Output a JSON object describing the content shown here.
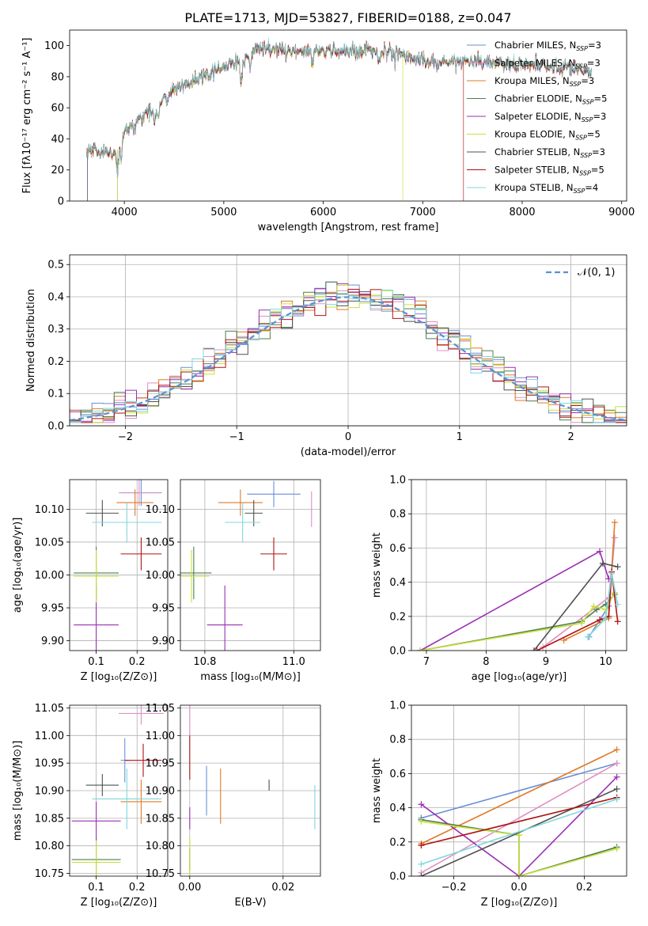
{
  "figure_title": "PLATE=1713, MJD=53827, FIBERID=0188, z=0.047",
  "colors": {
    "Chabrier MILES": "#6a8fd6",
    "Salpeter MILES": "#e08fc3",
    "Kroupa MILES": "#e07a26",
    "Chabrier ELODIE": "#4e7f4e",
    "Salpeter ELODIE": "#9a2fb3",
    "Kroupa ELODIE": "#c9e03a",
    "Chabrier STELIB": "#505050",
    "Salpeter STELIB": "#b01212",
    "Kroupa STELIB": "#7fd8dc",
    "normal": "#5b8fd6"
  },
  "chart_data": [
    {
      "id": "spectrum",
      "type": "line",
      "xlabel": "wavelength [Angstrom, rest frame]",
      "ylabel": "Flux [fλ10⁻¹⁷ erg cm⁻² s⁻¹ A⁻¹]",
      "xlim": [
        3450,
        9050
      ],
      "ylim": [
        0,
        110
      ],
      "xticks": [
        4000,
        5000,
        6000,
        7000,
        8000,
        9000
      ],
      "yticks": [
        0,
        20,
        40,
        60,
        80,
        100
      ],
      "legend_position": "upper-right",
      "legend": [
        {
          "name": "Chabrier MILES",
          "nssp": "3"
        },
        {
          "name": "Salpeter MILES",
          "nssp": "3"
        },
        {
          "name": "Kroupa MILES",
          "nssp": "3"
        },
        {
          "name": "Chabrier ELODIE",
          "nssp": "5"
        },
        {
          "name": "Salpeter ELODIE",
          "nssp": "3"
        },
        {
          "name": "Kroupa ELODIE",
          "nssp": "5"
        },
        {
          "name": "Chabrier STELIB",
          "nssp": "3"
        },
        {
          "name": "Salpeter STELIB",
          "nssp": "5"
        },
        {
          "name": "Kroupa STELIB",
          "nssp": "4"
        }
      ],
      "continuum": [
        [
          3620,
          30
        ],
        [
          3700,
          33
        ],
        [
          3800,
          32
        ],
        [
          3900,
          30
        ],
        [
          3950,
          35
        ],
        [
          4000,
          45
        ],
        [
          4100,
          50
        ],
        [
          4200,
          56
        ],
        [
          4300,
          58
        ],
        [
          4400,
          66
        ],
        [
          4500,
          72
        ],
        [
          4600,
          74
        ],
        [
          4700,
          77
        ],
        [
          4800,
          80
        ],
        [
          4900,
          84
        ],
        [
          5000,
          86
        ],
        [
          5100,
          88
        ],
        [
          5200,
          90
        ],
        [
          5300,
          97
        ],
        [
          5400,
          99
        ],
        [
          5500,
          98
        ],
        [
          5600,
          97
        ],
        [
          5800,
          96
        ],
        [
          6000,
          96
        ],
        [
          6200,
          97
        ],
        [
          6400,
          97
        ],
        [
          6600,
          96
        ],
        [
          6800,
          95
        ],
        [
          6900,
          92
        ],
        [
          7000,
          91
        ],
        [
          7100,
          89
        ],
        [
          7300,
          90
        ],
        [
          7500,
          90
        ],
        [
          7700,
          89
        ],
        [
          7900,
          88
        ],
        [
          8100,
          87
        ],
        [
          8300,
          86
        ],
        [
          8500,
          85
        ],
        [
          8700,
          84
        ]
      ]
    },
    {
      "id": "residuals",
      "type": "step",
      "xlabel": "(data-model)/error",
      "ylabel": "Normed distribution",
      "xlim": [
        -2.5,
        2.5
      ],
      "ylim": [
        0,
        0.53
      ],
      "xticks": [
        -2,
        -1,
        0,
        1,
        2
      ],
      "yticks": [
        0,
        0.1,
        0.2,
        0.3,
        0.4,
        0.5
      ],
      "grid": true,
      "legend_position": "upper-right",
      "normal_label": "𝒩(0, 1)",
      "bin_width": 0.1
    },
    {
      "id": "age-vs-Z",
      "type": "errorbar",
      "xlabel": "Z [log₁₀(Z/Z⊙)]",
      "ylabel": "age  [log₁₀(age/yr)]",
      "xlim": [
        0.035,
        0.275
      ],
      "ylim": [
        9.885,
        10.145
      ],
      "xticks": [
        0.1,
        0.2
      ],
      "yticks": [
        9.9,
        9.95,
        10.0,
        10.05,
        10.1
      ],
      "points": [
        {
          "series": "Chabrier MILES",
          "x": 0.21,
          "y": 10.125,
          "xerr": 0.05,
          "yerr": 0.02
        },
        {
          "series": "Salpeter MILES",
          "x": 0.205,
          "y": 10.125,
          "xerr": 0.05,
          "yerr": 0.02
        },
        {
          "series": "Kroupa MILES",
          "x": 0.195,
          "y": 10.11,
          "xerr": 0.045,
          "yerr": 0.02
        },
        {
          "series": "Chabrier ELODIE",
          "x": 0.1,
          "y": 10.003,
          "xerr": 0.055,
          "yerr": 0.04
        },
        {
          "series": "Salpeter ELODIE",
          "x": 0.1,
          "y": 9.924,
          "xerr": 0.055,
          "yerr": 0.06
        },
        {
          "series": "Kroupa ELODIE",
          "x": 0.1,
          "y": 9.998,
          "xerr": 0.055,
          "yerr": 0.04
        },
        {
          "series": "Chabrier STELIB",
          "x": 0.115,
          "y": 10.094,
          "xerr": 0.04,
          "yerr": 0.02
        },
        {
          "series": "Salpeter STELIB",
          "x": 0.21,
          "y": 10.032,
          "xerr": 0.05,
          "yerr": 0.025
        },
        {
          "series": "Kroupa STELIB",
          "x": 0.175,
          "y": 10.08,
          "xerr": 0.085,
          "yerr": 0.03
        }
      ]
    },
    {
      "id": "age-vs-mass",
      "type": "errorbar",
      "xlabel": "mass [log₁₀(M/M⊙)]",
      "xlim": [
        10.745,
        11.06
      ],
      "ylim": [
        9.885,
        10.145
      ],
      "xticks": [
        10.8,
        11.0
      ],
      "xticklabels": [
        "10.8",
        "11.0"
      ],
      "yticks": [
        9.9,
        9.95,
        10.0,
        10.05,
        10.1
      ],
      "points": [
        {
          "series": "Chabrier MILES",
          "x": 10.955,
          "y": 10.123,
          "xerr": 0.06,
          "yerr": 0.02
        },
        {
          "series": "Salpeter MILES",
          "x": 11.04,
          "y": 10.1,
          "xerr": 0.0,
          "yerr": 0.027
        },
        {
          "series": "Kroupa MILES",
          "x": 10.88,
          "y": 10.11,
          "xerr": 0.05,
          "yerr": 0.02
        },
        {
          "series": "Chabrier ELODIE",
          "x": 10.775,
          "y": 10.003,
          "xerr": 0.04,
          "yerr": 0.04
        },
        {
          "series": "Salpeter ELODIE",
          "x": 10.845,
          "y": 9.924,
          "xerr": 0.04,
          "yerr": 0.06
        },
        {
          "series": "Kroupa ELODIE",
          "x": 10.77,
          "y": 9.998,
          "xerr": 0.04,
          "yerr": 0.04
        },
        {
          "series": "Chabrier STELIB",
          "x": 10.91,
          "y": 10.094,
          "xerr": 0.02,
          "yerr": 0.02
        },
        {
          "series": "Salpeter STELIB",
          "x": 10.955,
          "y": 10.032,
          "xerr": 0.03,
          "yerr": 0.025
        },
        {
          "series": "Kroupa STELIB",
          "x": 10.885,
          "y": 10.08,
          "xerr": 0.04,
          "yerr": 0.03
        }
      ]
    },
    {
      "id": "weight-vs-age",
      "type": "line",
      "xlabel": "age  [log₁₀(age/yr)]",
      "ylabel": "mass weight",
      "xlim": [
        6.75,
        10.35
      ],
      "ylim": [
        0,
        1
      ],
      "xticks": [
        7,
        8,
        9,
        10
      ],
      "yticks": [
        0,
        0.2,
        0.4,
        0.6,
        0.8,
        1.0
      ],
      "series": [
        {
          "name": "Chabrier MILES",
          "x": [
            9.72,
            10.05,
            10.15
          ],
          "y": [
            0.08,
            0.26,
            0.66
          ]
        },
        {
          "name": "Salpeter MILES",
          "x": [
            8.95,
            10.05,
            10.15
          ],
          "y": [
            0.02,
            0.31,
            0.66
          ]
        },
        {
          "name": "Kroupa MILES",
          "x": [
            9.3,
            10.05,
            10.15
          ],
          "y": [
            0.06,
            0.19,
            0.75
          ]
        },
        {
          "name": "Chabrier ELODIE",
          "x": [
            6.9,
            9.6,
            9.85,
            10.0,
            10.15
          ],
          "y": [
            0.0,
            0.17,
            0.24,
            0.27,
            0.33
          ]
        },
        {
          "name": "Salpeter ELODIE",
          "x": [
            6.9,
            9.9,
            10.05
          ],
          "y": [
            0.0,
            0.58,
            0.42
          ]
        },
        {
          "name": "Kroupa ELODIE",
          "x": [
            6.9,
            9.6,
            9.8,
            10.0,
            10.15
          ],
          "y": [
            0.0,
            0.16,
            0.26,
            0.24,
            0.34
          ]
        },
        {
          "name": "Chabrier STELIB",
          "x": [
            8.8,
            9.95,
            10.2
          ],
          "y": [
            0.0,
            0.51,
            0.49
          ]
        },
        {
          "name": "Salpeter STELIB",
          "x": [
            8.85,
            9.9,
            10.05,
            10.1,
            10.2
          ],
          "y": [
            0.0,
            0.18,
            0.2,
            0.46,
            0.17
          ]
        },
        {
          "name": "Kroupa STELIB",
          "x": [
            9.7,
            10.0,
            10.1,
            10.2
          ],
          "y": [
            0.08,
            0.19,
            0.45,
            0.27
          ]
        }
      ]
    },
    {
      "id": "mass-vs-Z",
      "type": "errorbar",
      "xlabel": "Z [log₁₀(Z/Z⊙)]",
      "ylabel": "mass [log₁₀(M/M⊙)]",
      "xlim": [
        0.035,
        0.275
      ],
      "ylim": [
        10.745,
        11.055
      ],
      "xticks": [
        0.1,
        0.2
      ],
      "yticks": [
        10.75,
        10.8,
        10.85,
        10.9,
        10.95,
        11.0,
        11.05
      ],
      "points": [
        {
          "series": "Chabrier MILES",
          "x": 0.17,
          "y": 10.955,
          "xerr": 0.01,
          "yerr": 0.04
        },
        {
          "series": "Salpeter MILES",
          "x": 0.21,
          "y": 11.04,
          "xerr": 0.055,
          "yerr": 0.02
        },
        {
          "series": "Kroupa MILES",
          "x": 0.21,
          "y": 10.88,
          "xerr": 0.05,
          "yerr": 0.04
        },
        {
          "series": "Chabrier ELODIE",
          "x": 0.1,
          "y": 10.775,
          "xerr": 0.06,
          "yerr": 0.04
        },
        {
          "series": "Salpeter ELODIE",
          "x": 0.1,
          "y": 10.845,
          "xerr": 0.06,
          "yerr": 0.035
        },
        {
          "series": "Kroupa ELODIE",
          "x": 0.1,
          "y": 10.77,
          "xerr": 0.06,
          "yerr": 0.04
        },
        {
          "series": "Chabrier STELIB",
          "x": 0.115,
          "y": 10.91,
          "xerr": 0.04,
          "yerr": 0.02
        },
        {
          "series": "Salpeter STELIB",
          "x": 0.215,
          "y": 10.955,
          "xerr": 0.045,
          "yerr": 0.03
        },
        {
          "series": "Kroupa STELIB",
          "x": 0.175,
          "y": 10.885,
          "xerr": 0.085,
          "yerr": 0.055
        }
      ]
    },
    {
      "id": "mass-vs-EBV",
      "type": "errorbar",
      "xlabel": "E(B-V)",
      "xlim": [
        -0.002,
        0.028
      ],
      "ylim": [
        10.745,
        11.055
      ],
      "xticks": [
        0.0,
        0.02
      ],
      "xticklabels": [
        "0.00",
        "0.02"
      ],
      "yticks": [
        10.75,
        10.8,
        10.85,
        10.9,
        10.95,
        11.0,
        11.05
      ],
      "points": [
        {
          "series": "Chabrier MILES",
          "x": 0.0036,
          "y": 10.9,
          "xerr": 0.0,
          "yerr": 0.045
        },
        {
          "series": "Salpeter MILES",
          "x": 0.0,
          "y": 11.03,
          "xerr": 0.0,
          "yerr": 0.03
        },
        {
          "series": "Kroupa MILES",
          "x": 0.0066,
          "y": 10.89,
          "xerr": 0.0,
          "yerr": 0.05
        },
        {
          "series": "Chabrier ELODIE",
          "x": 0.0,
          "y": 10.775,
          "xerr": 0.0,
          "yerr": 0.02
        },
        {
          "series": "Salpeter ELODIE",
          "x": 0.0,
          "y": 10.85,
          "xerr": 0.0,
          "yerr": 0.02
        },
        {
          "series": "Kroupa ELODIE",
          "x": 0.0,
          "y": 10.78,
          "xerr": 0.0,
          "yerr": 0.035
        },
        {
          "series": "Chabrier STELIB",
          "x": 0.017,
          "y": 10.91,
          "xerr": 0.0,
          "yerr": 0.01
        },
        {
          "series": "Salpeter STELIB",
          "x": 0.0,
          "y": 10.96,
          "xerr": 0.0,
          "yerr": 0.04
        },
        {
          "series": "Kroupa STELIB",
          "x": 0.0268,
          "y": 10.87,
          "xerr": 0.0,
          "yerr": 0.04
        }
      ]
    },
    {
      "id": "weight-vs-Z",
      "type": "line",
      "xlabel": "Z [log₁₀(Z/Z⊙)]",
      "ylabel": "mass weight",
      "xlim": [
        -0.33,
        0.33
      ],
      "ylim": [
        0,
        1
      ],
      "xticks": [
        -0.2,
        0.0,
        0.2
      ],
      "xticklabels": [
        "−0.2",
        "0.0",
        "0.2"
      ],
      "yticks": [
        0,
        0.2,
        0.4,
        0.6,
        0.8,
        1.0
      ],
      "series": [
        {
          "name": "Chabrier MILES",
          "x": [
            -0.3,
            0.3
          ],
          "y": [
            0.34,
            0.66
          ]
        },
        {
          "name": "Salpeter MILES",
          "x": [
            -0.3,
            0.3
          ],
          "y": [
            0.02,
            0.66
          ]
        },
        {
          "name": "Kroupa MILES",
          "x": [
            -0.3,
            0.3
          ],
          "y": [
            0.19,
            0.74
          ]
        },
        {
          "name": "Chabrier ELODIE",
          "x": [
            -0.3,
            0.0,
            0.0,
            0.3
          ],
          "y": [
            0.33,
            0.24,
            0.0,
            0.17
          ]
        },
        {
          "name": "Salpeter ELODIE",
          "x": [
            -0.3,
            0.0,
            0.3
          ],
          "y": [
            0.42,
            0.0,
            0.58
          ]
        },
        {
          "name": "Kroupa ELODIE",
          "x": [
            -0.3,
            0.0,
            0.0,
            0.3
          ],
          "y": [
            0.32,
            0.24,
            0.0,
            0.16
          ]
        },
        {
          "name": "Chabrier STELIB",
          "x": [
            -0.3,
            0.3
          ],
          "y": [
            0.0,
            0.51
          ]
        },
        {
          "name": "Salpeter STELIB",
          "x": [
            -0.3,
            0.3
          ],
          "y": [
            0.18,
            0.46
          ]
        },
        {
          "name": "Kroupa STELIB",
          "x": [
            -0.3,
            0.3
          ],
          "y": [
            0.07,
            0.45
          ]
        }
      ]
    }
  ]
}
